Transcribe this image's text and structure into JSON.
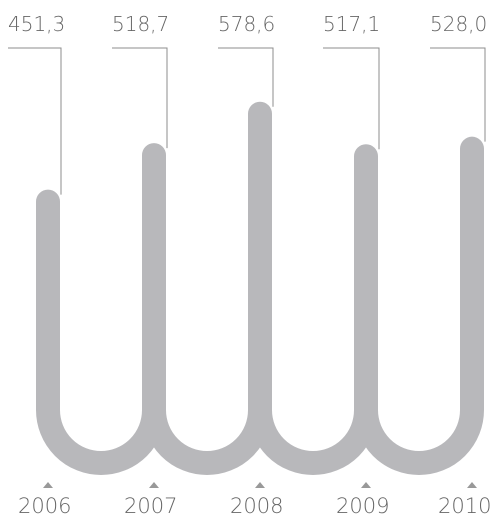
{
  "chart_data": {
    "type": "bar",
    "categories": [
      "2006",
      "2007",
      "2008",
      "2009",
      "2010"
    ],
    "values": [
      451.3,
      518.7,
      578.6,
      517.1,
      528.0
    ],
    "value_labels": [
      "451,3",
      "518,7",
      "578,6",
      "517,1",
      "528,0"
    ],
    "colors": {
      "bar": "#b8b8bb",
      "leader": "#8c8c8c",
      "text": "#666666",
      "triangle": "#999999"
    }
  }
}
